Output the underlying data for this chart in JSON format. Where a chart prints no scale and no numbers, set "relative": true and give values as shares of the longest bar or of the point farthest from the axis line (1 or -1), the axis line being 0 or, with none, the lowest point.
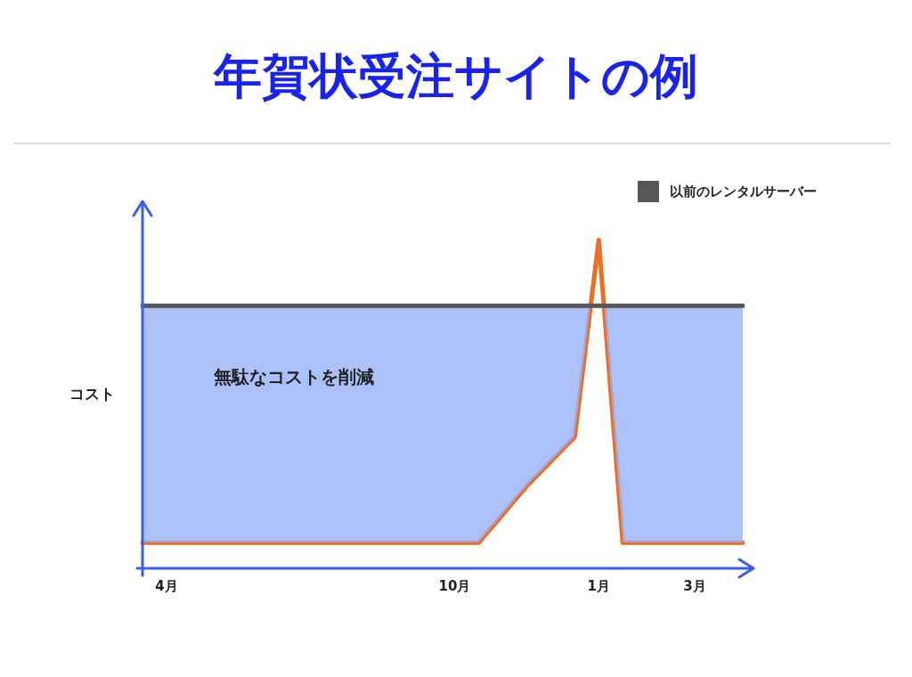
{
  "chart_data": {
    "type": "line",
    "title": "年賀状受注サイトの例",
    "ylabel": "コスト",
    "relative": true,
    "categories": [
      null,
      "4月",
      null,
      null,
      null,
      null,
      null,
      null,
      null,
      null,
      null,
      null,
      null,
      "10月",
      null,
      null,
      null,
      null,
      null,
      "1月",
      null,
      null,
      null,
      "3月",
      null,
      null
    ],
    "series": [
      {
        "name": "以前のレンタルサーバー",
        "color": "#555759",
        "values": [
          0.8,
          0.8,
          0.8,
          0.8,
          0.8,
          0.8,
          0.8,
          0.8,
          0.8,
          0.8,
          0.8,
          0.8,
          0.8,
          0.8,
          0.8,
          0.8,
          0.8,
          0.8,
          0.8,
          0.8,
          0.8,
          0.8,
          0.8,
          0.8,
          0.8,
          0.8
        ]
      },
      {
        "color": "#f26a1b",
        "values": [
          0.078,
          0.078,
          0.078,
          0.078,
          0.078,
          0.078,
          0.078,
          0.078,
          0.078,
          0.078,
          0.078,
          0.078,
          0.078,
          0.078,
          0.078,
          null,
          0.25,
          null,
          0.4,
          1,
          0.078,
          0.078,
          0.078,
          0.078,
          0.078,
          0.078
        ]
      }
    ],
    "annotations": [
      "無駄なコストを削減"
    ],
    "grid": false,
    "legend": "top right",
    "marker": "none",
    "line_style": "solid"
  }
}
